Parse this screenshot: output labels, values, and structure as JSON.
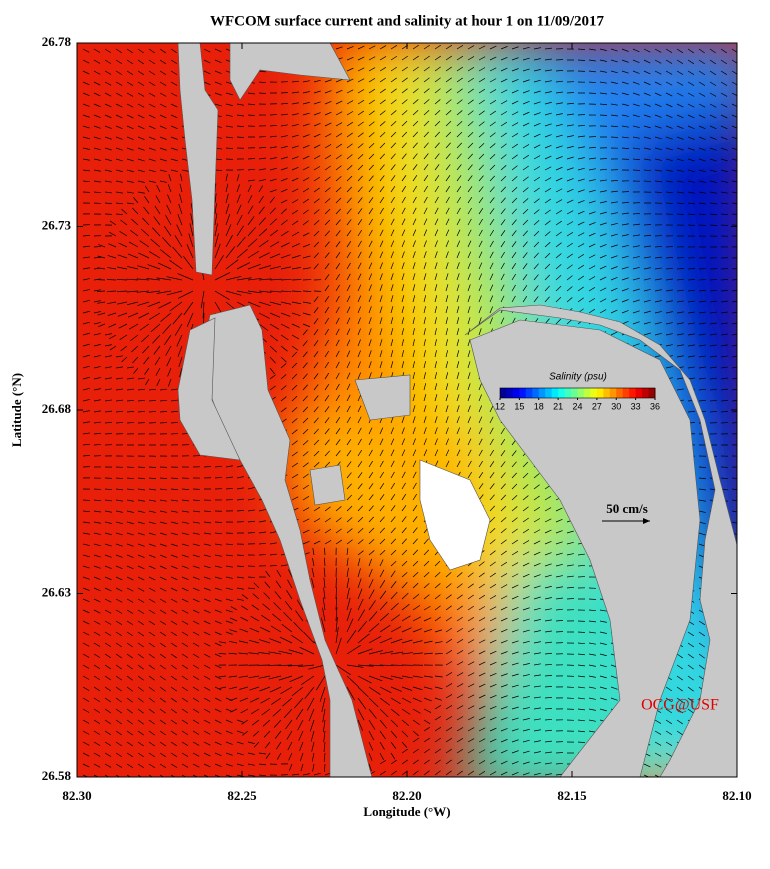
{
  "chart_data": {
    "type": "map",
    "title": "WFCOM surface current and salinity at hour 1 on 11/09/2017",
    "x_label": "Longitude (°W)",
    "y_label": "Latitude (°N)",
    "xlim": [
      82.3,
      82.1
    ],
    "ylim": [
      26.58,
      26.78
    ],
    "xticks": [
      {
        "value": 82.3,
        "label": "82.30"
      },
      82.25,
      {
        "value": 82.2,
        "label": "82.20"
      },
      82.15,
      {
        "value": 82.1,
        "label": "82.10"
      }
    ],
    "yticks": [
      26.58,
      26.63,
      26.68,
      26.73,
      26.78
    ],
    "colorbar": {
      "title": "Salinity (psu)",
      "lim": [
        12,
        36
      ],
      "ticks": [
        12,
        15,
        18,
        21,
        24,
        27,
        30,
        33,
        36
      ],
      "colormap": "jet"
    },
    "scale_label": "50 cm/s",
    "credit": "OCG@USF"
  }
}
